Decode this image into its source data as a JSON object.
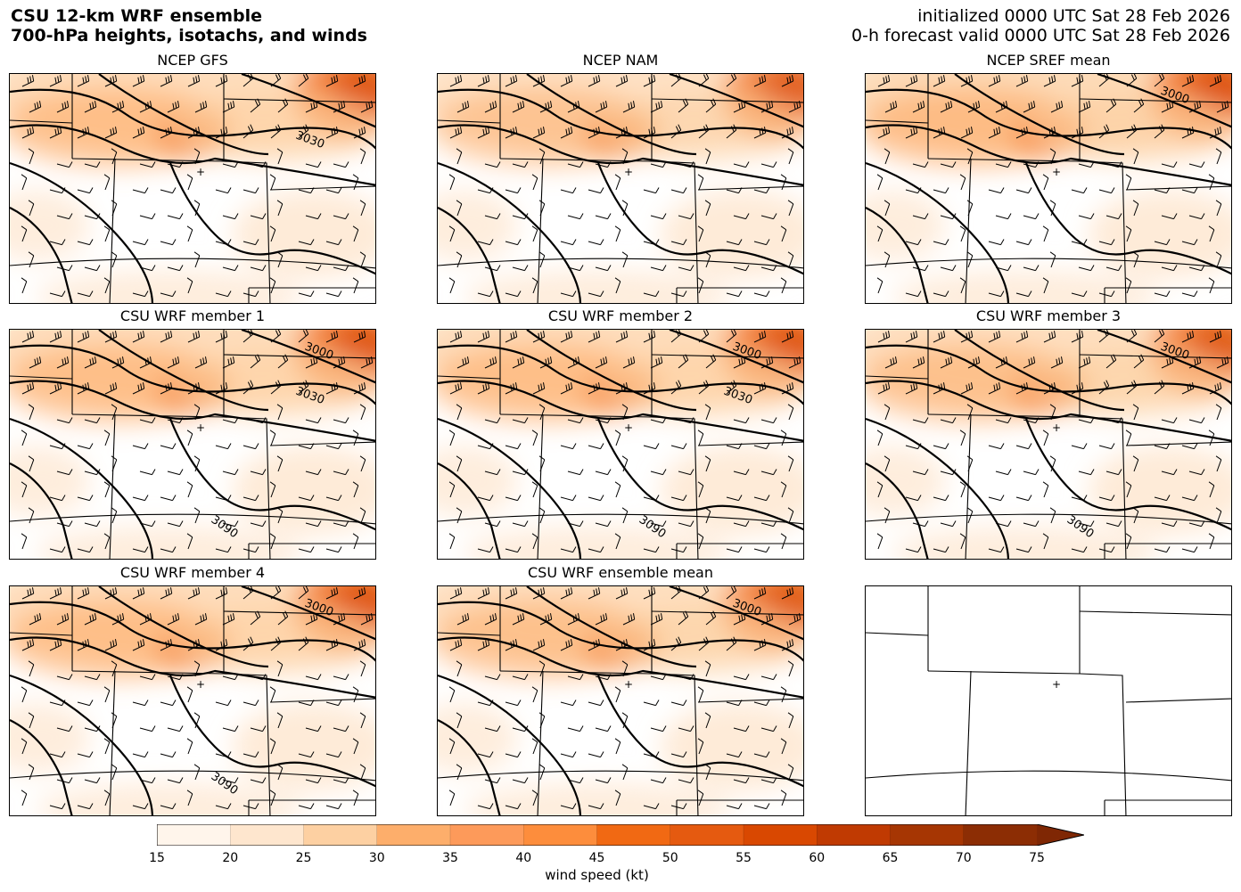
{
  "header": {
    "title_line1": "CSU 12-km WRF ensemble",
    "title_line2": "700-hPa heights, isotachs, and winds",
    "init_line": "initialized 0000 UTC Sat 28 Feb 2026",
    "valid_line": "0-h forecast valid 0000 UTC Sat 28 Feb 2026"
  },
  "panels": [
    {
      "title": "NCEP GFS",
      "contour_labels": [
        "3030"
      ],
      "intensity": 0.8
    },
    {
      "title": "NCEP NAM",
      "contour_labels": [],
      "intensity": 0.7
    },
    {
      "title": "NCEP SREF mean",
      "contour_labels": [
        "3000"
      ],
      "intensity": 0.85
    },
    {
      "title": "CSU WRF member 1",
      "contour_labels": [
        "3000",
        "3030",
        "3090"
      ],
      "intensity": 0.8
    },
    {
      "title": "CSU WRF member 2",
      "contour_labels": [
        "3000",
        "3030",
        "3090"
      ],
      "intensity": 0.8
    },
    {
      "title": "CSU WRF member 3",
      "contour_labels": [
        "3000",
        "3090"
      ],
      "intensity": 0.75
    },
    {
      "title": "CSU WRF member 4",
      "contour_labels": [
        "3000",
        "3090"
      ],
      "intensity": 0.8
    },
    {
      "title": "CSU WRF ensemble mean",
      "contour_labels": [
        "3000"
      ],
      "intensity": 0.75
    },
    {
      "title": "",
      "contour_labels": [],
      "intensity": 0
    }
  ],
  "colorbar": {
    "label": "wind speed (kt)",
    "ticks": [
      "15",
      "20",
      "25",
      "30",
      "35",
      "40",
      "45",
      "50",
      "55",
      "60",
      "65",
      "70",
      "75"
    ],
    "colors": [
      "#fff5eb",
      "#fee6ce",
      "#fdd0a2",
      "#fdae6b",
      "#fd9a5a",
      "#fd8d3c",
      "#f16913",
      "#e55a10",
      "#d94801",
      "#c03a02",
      "#a63603",
      "#8c2d04",
      "#7f2704"
    ],
    "extend": "max"
  }
}
